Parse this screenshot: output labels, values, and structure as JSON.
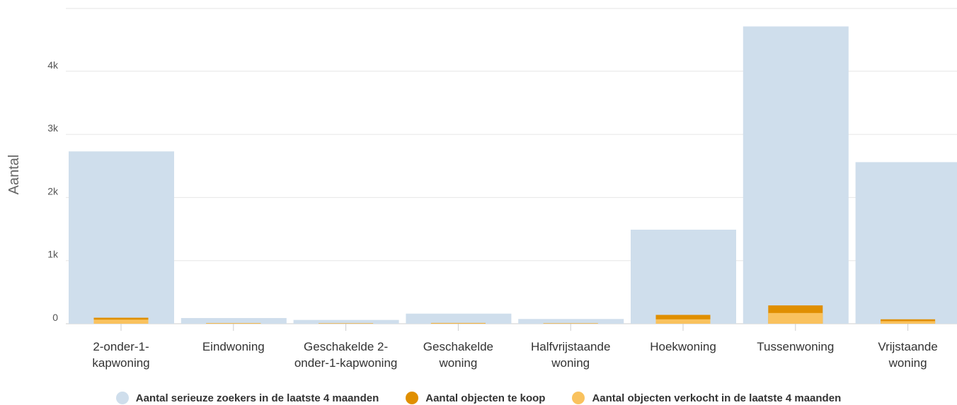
{
  "chart_data": {
    "type": "bar",
    "ylabel": "Aantal",
    "yticks": [
      "0",
      "1k",
      "2k",
      "3k",
      "4k"
    ],
    "ylim": [
      0,
      5000
    ],
    "grid": true,
    "legend_position": "bottom",
    "categories": [
      [
        "2-onder-1-",
        "kapwoning"
      ],
      [
        "Eindwoning"
      ],
      [
        "Geschakelde 2-",
        "onder-1-kapwoning"
      ],
      [
        "Geschakelde",
        "woning"
      ],
      [
        "Halfvrijstaande",
        "woning"
      ],
      [
        "Hoekwoning"
      ],
      [
        "Tussenwoning"
      ],
      [
        "Vrijstaande",
        "woning"
      ]
    ],
    "series": [
      {
        "name": "Aantal serieuze zoekers in de laatste 4 maanden",
        "color": "#cfdeec",
        "values": [
          2730,
          90,
          60,
          160,
          75,
          1490,
          4710,
          2560
        ]
      },
      {
        "name": "Aantal objecten te koop",
        "color": "#e08f00",
        "values": [
          95,
          10,
          8,
          12,
          8,
          140,
          290,
          70
        ]
      },
      {
        "name": "Aantal objecten verkocht in de laatste 4 maanden",
        "color": "#f9c25e",
        "values": [
          65,
          8,
          5,
          8,
          5,
          70,
          170,
          40
        ]
      }
    ]
  }
}
